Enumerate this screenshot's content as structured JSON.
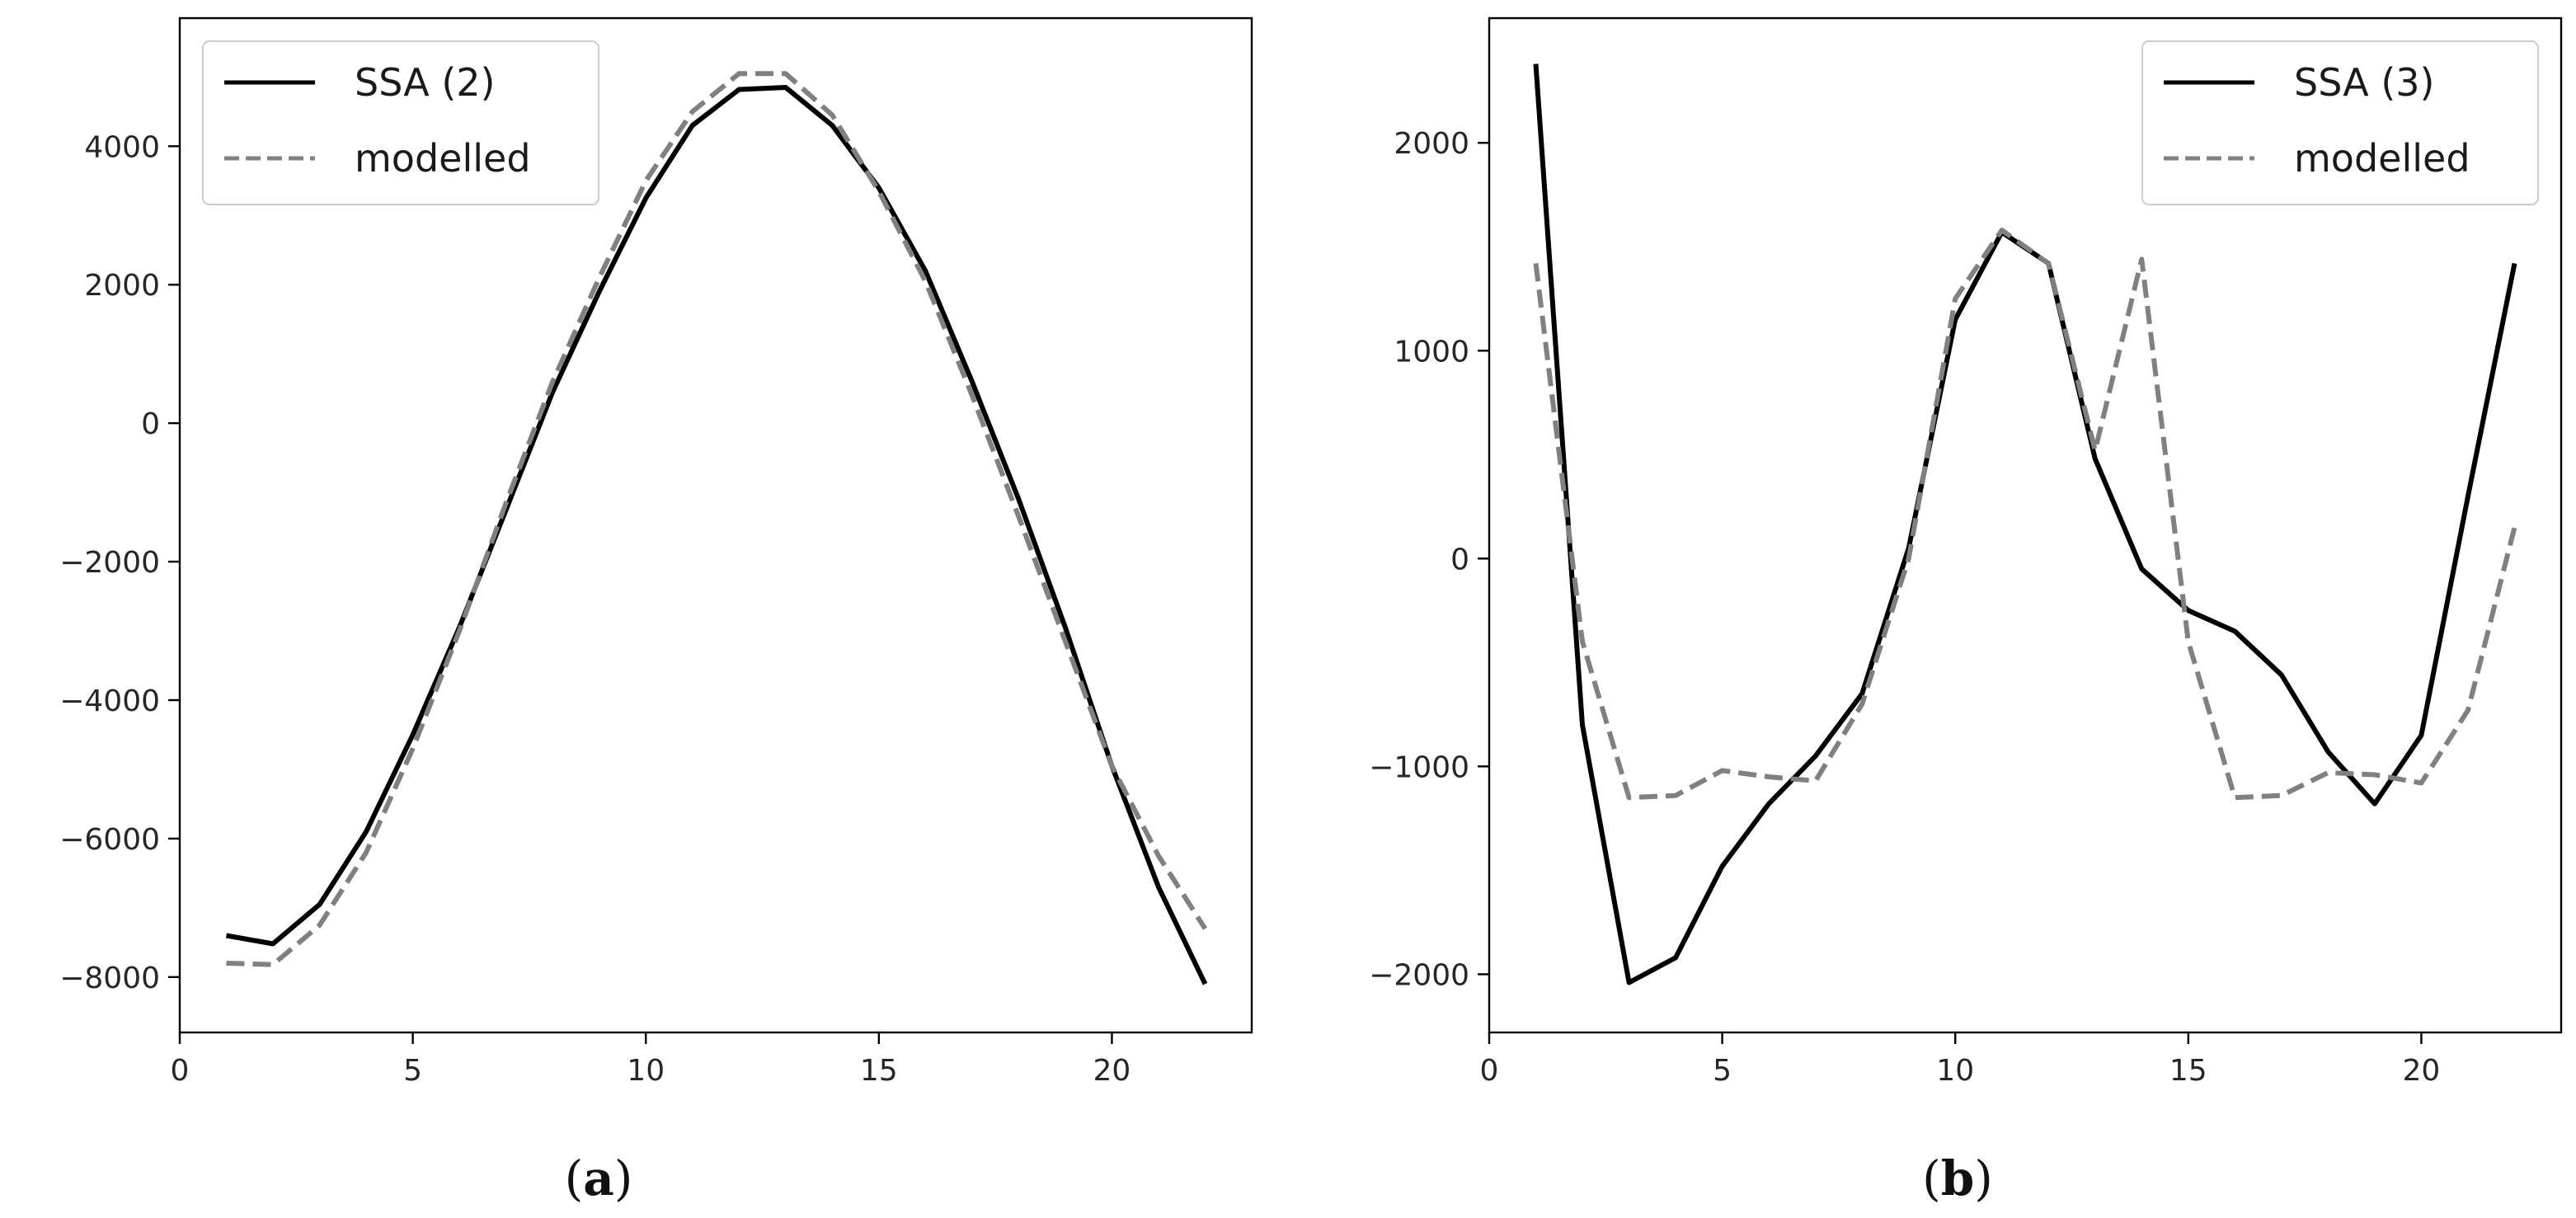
{
  "chart_data": [
    {
      "type": "line",
      "panel_label": "a",
      "x": [
        1,
        2,
        3,
        4,
        5,
        6,
        7,
        8,
        9,
        10,
        11,
        12,
        13,
        14,
        15,
        16,
        17,
        18,
        19,
        20,
        21,
        22
      ],
      "series": [
        {
          "name": "SSA (2)",
          "style": "solid",
          "color": "#000000",
          "values": [
            -7400,
            -7520,
            -6950,
            -5900,
            -4500,
            -2950,
            -1250,
            450,
            1900,
            3250,
            4300,
            4820,
            4850,
            4300,
            3400,
            2200,
            600,
            -1100,
            -2950,
            -4950,
            -6700,
            -8100
          ]
        },
        {
          "name": "modelled",
          "style": "dashed",
          "color": "#808080",
          "values": [
            -7800,
            -7820,
            -7250,
            -6200,
            -4700,
            -3000,
            -1150,
            600,
            2100,
            3500,
            4500,
            5050,
            5050,
            4450,
            3350,
            2050,
            400,
            -1350,
            -3150,
            -4950,
            -6250,
            -7300
          ]
        }
      ],
      "xlim": [
        0,
        23
      ],
      "ylim": [
        -8800,
        5850
      ],
      "xticks": [
        0,
        5,
        10,
        15,
        20
      ],
      "xtick_labels": [
        "0",
        "5",
        "10",
        "15",
        "20"
      ],
      "yticks": [
        -8000,
        -6000,
        -4000,
        -2000,
        0,
        2000,
        4000
      ],
      "ytick_labels": [
        "−8000",
        "−6000",
        "−4000",
        "−2000",
        "0",
        "2000",
        "4000"
      ],
      "legend_position": "top-left",
      "grid": false,
      "title": "",
      "xlabel": "",
      "ylabel": ""
    },
    {
      "type": "line",
      "panel_label": "b",
      "x": [
        1,
        2,
        3,
        4,
        5,
        6,
        7,
        8,
        9,
        10,
        11,
        12,
        13,
        14,
        15,
        16,
        17,
        18,
        19,
        20,
        21,
        22
      ],
      "series": [
        {
          "name": "SSA (3)",
          "style": "solid",
          "color": "#000000",
          "values": [
            2380,
            -800,
            -2040,
            -1920,
            -1480,
            -1180,
            -950,
            -650,
            50,
            1150,
            1570,
            1420,
            480,
            -50,
            -250,
            -350,
            -560,
            -930,
            -1180,
            -850,
            300,
            1420
          ]
        },
        {
          "name": "modelled",
          "style": "dashed",
          "color": "#808080",
          "values": [
            1420,
            -400,
            -1150,
            -1140,
            -1020,
            -1050,
            -1070,
            -700,
            0,
            1250,
            1580,
            1420,
            520,
            1440,
            -400,
            -1150,
            -1140,
            -1030,
            -1040,
            -1080,
            -730,
            150
          ]
        }
      ],
      "xlim": [
        0,
        23
      ],
      "ylim": [
        -2280,
        2600
      ],
      "xticks": [
        0,
        5,
        10,
        15,
        20
      ],
      "xtick_labels": [
        "0",
        "5",
        "10",
        "15",
        "20"
      ],
      "yticks": [
        -2000,
        -1000,
        0,
        1000,
        2000
      ],
      "ytick_labels": [
        "−2000",
        "−1000",
        "0",
        "1000",
        "2000"
      ],
      "legend_position": "top-right",
      "grid": false,
      "title": "",
      "xlabel": "",
      "ylabel": ""
    }
  ]
}
